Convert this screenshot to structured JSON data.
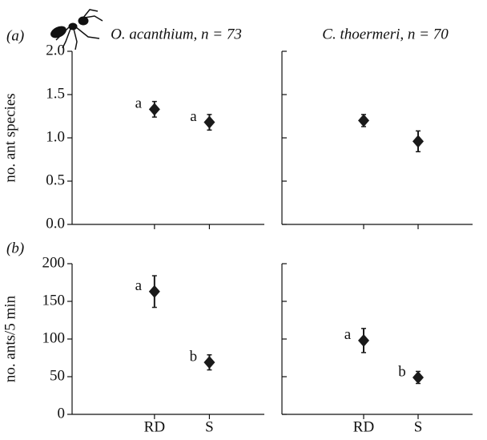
{
  "chart_data": [
    {
      "type": "errorbar",
      "panel_label": "(a)",
      "title": "O. acanthium, n = 73",
      "y_label": "no. ant species",
      "categories": [
        null,
        null
      ],
      "values": [
        1.33,
        1.18
      ],
      "errors": [
        0.09,
        0.09
      ],
      "letters": [
        "a",
        "a"
      ],
      "color": "#1a1a1a",
      "ylim": [
        0,
        2
      ],
      "yticks": [
        {
          "value": 0,
          "label": "0.0"
        },
        {
          "value": 0.5,
          "label": "0.5"
        },
        {
          "value": 1,
          "label": "1.0"
        },
        {
          "value": 1.5,
          "label": "1.5"
        },
        {
          "value": 2,
          "label": "2.0"
        }
      ]
    },
    {
      "type": "errorbar",
      "title": "C. thoermeri, n = 70",
      "categories": [
        null,
        null
      ],
      "values": [
        1.2,
        0.96
      ],
      "errors": [
        0.07,
        0.12
      ],
      "color": "#1a1a1a",
      "ylim": [
        0,
        2
      ],
      "yticks": [
        0,
        0.5,
        1,
        1.5,
        2
      ]
    },
    {
      "type": "errorbar",
      "panel_label": "(b)",
      "y_label": "no. ants/5 min",
      "categories": [
        "RD",
        "S"
      ],
      "values": [
        163,
        69
      ],
      "errors": [
        21,
        10
      ],
      "letters": [
        "a",
        "b"
      ],
      "color": "#1a1a1a",
      "ylim": [
        0,
        200
      ],
      "yticks": [
        0,
        50,
        100,
        150,
        200
      ]
    },
    {
      "type": "errorbar",
      "categories": [
        "RD",
        "S"
      ],
      "values": [
        98,
        49
      ],
      "errors": [
        16,
        8
      ],
      "letters": [
        "a",
        "b"
      ],
      "color": "#1a1a1a",
      "ylim": [
        0,
        200
      ],
      "yticks": [
        0,
        50,
        100,
        150,
        200
      ]
    }
  ]
}
